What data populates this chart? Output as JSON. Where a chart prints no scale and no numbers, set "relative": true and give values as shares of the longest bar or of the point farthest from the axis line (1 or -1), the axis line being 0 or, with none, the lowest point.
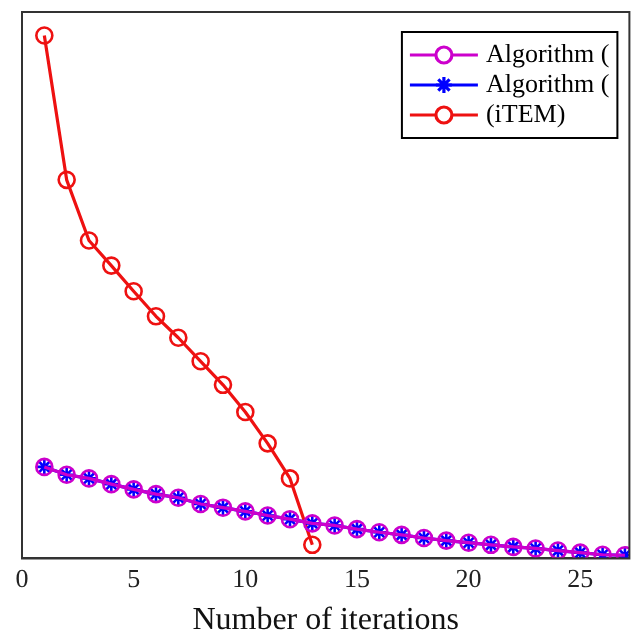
{
  "chart_data": {
    "type": "line",
    "xlabel": "Number of iterations",
    "relative": true,
    "xlim": [
      0,
      27.2
    ],
    "xticks": [
      0,
      5,
      10,
      15,
      20,
      25
    ],
    "tick_labels": "x",
    "grid": false,
    "legend": "top right",
    "line_style": "solid",
    "series": [
      {
        "name": "Algorithm (",
        "color": "#cc00cc",
        "marker": "circle",
        "x": [
          1,
          2,
          3,
          4,
          5,
          6,
          7,
          8,
          9,
          10,
          11,
          12,
          13,
          14,
          15,
          16,
          17,
          18,
          19,
          20,
          21,
          22,
          23,
          24,
          25,
          26,
          27
        ],
        "values": [
          0.175,
          0.16,
          0.153,
          0.142,
          0.132,
          0.123,
          0.116,
          0.104,
          0.097,
          0.09,
          0.082,
          0.075,
          0.067,
          0.063,
          0.056,
          0.05,
          0.045,
          0.039,
          0.034,
          0.03,
          0.026,
          0.022,
          0.019,
          0.015,
          0.011,
          0.007,
          0.006
        ]
      },
      {
        "name": "Algorithm (",
        "color": "#0000ff",
        "marker": "cross",
        "x": [
          1,
          2,
          3,
          4,
          5,
          6,
          7,
          8,
          9,
          10,
          11,
          12,
          13,
          14,
          15,
          16,
          17,
          18,
          19,
          20,
          21,
          22,
          23,
          24,
          25,
          26,
          27
        ],
        "values": [
          0.175,
          0.16,
          0.153,
          0.142,
          0.132,
          0.123,
          0.116,
          0.104,
          0.097,
          0.09,
          0.082,
          0.075,
          0.067,
          0.063,
          0.056,
          0.05,
          0.045,
          0.039,
          0.034,
          0.03,
          0.026,
          0.022,
          0.019,
          0.015,
          0.011,
          0.007,
          0.006
        ]
      },
      {
        "name": "(iTEM)",
        "color": "#ee1111",
        "marker": "circle",
        "x": [
          1,
          2,
          3,
          4,
          5,
          6,
          7,
          8,
          9,
          10,
          11,
          12,
          13
        ],
        "values": [
          1,
          0.724,
          0.608,
          0.56,
          0.511,
          0.463,
          0.422,
          0.377,
          0.332,
          0.28,
          0.22,
          0.153,
          0.026
        ]
      }
    ]
  }
}
